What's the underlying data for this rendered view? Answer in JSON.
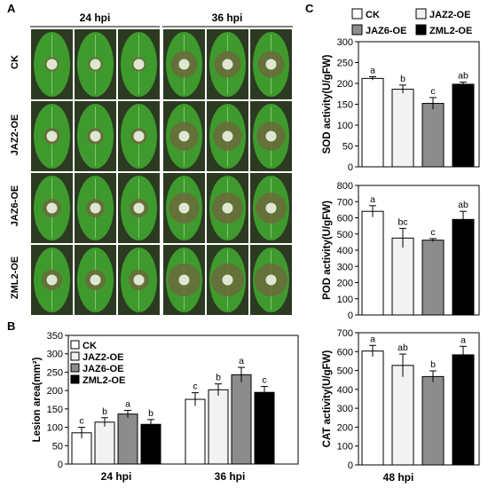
{
  "panel_letters": {
    "a": "A",
    "b": "B",
    "c": "C"
  },
  "photo_panel": {
    "columns": [
      "24 hpi",
      "36 hpi"
    ],
    "rows": [
      "CK",
      "JAZ2-OE",
      "JAZ6-OE",
      "ZML2-OE"
    ],
    "leaf_colors": {
      "leaf": "#3f9a2e",
      "lesion": "#6b6a3a",
      "center": "#dfe6d4",
      "background": "#2c3a22"
    }
  },
  "legend_entries": [
    "CK",
    "JAZ2-OE",
    "JAZ6-OE",
    "ZML2-OE"
  ],
  "series_colors": [
    "#ffffff",
    "#f2f2f2",
    "#8c8c8c",
    "#000000"
  ],
  "bottom_label": "48 hpi",
  "chart_data": [
    {
      "panel": "B",
      "type": "bar",
      "ylabel": "Lesion area(mm²)",
      "ylim": [
        0,
        350
      ],
      "yticks": [
        0,
        50,
        100,
        150,
        200,
        250,
        300,
        350
      ],
      "categories": [
        "24 hpi",
        "36 hpi"
      ],
      "legend": "top-left",
      "series": [
        {
          "name": "CK",
          "values": [
            85,
            176
          ],
          "errors": [
            15,
            18
          ],
          "letters": [
            "c",
            "c"
          ]
        },
        {
          "name": "JAZ2-OE",
          "values": [
            114,
            202
          ],
          "errors": [
            12,
            16
          ],
          "letters": [
            "b",
            "b"
          ]
        },
        {
          "name": "JAZ6-OE",
          "values": [
            136,
            243
          ],
          "errors": [
            10,
            20
          ],
          "letters": [
            "a",
            "a"
          ]
        },
        {
          "name": "ZML2-OE",
          "values": [
            108,
            195
          ],
          "errors": [
            13,
            16
          ],
          "letters": [
            "b",
            "c"
          ]
        }
      ]
    },
    {
      "panel": "C-top",
      "type": "bar",
      "ylabel": "SOD activity(U/gFW)",
      "ylim": [
        0,
        300
      ],
      "yticks": [
        0,
        50,
        100,
        150,
        200,
        250,
        300
      ],
      "categories": [
        "CK",
        "JAZ2-OE",
        "JAZ6-OE",
        "ZML2-OE"
      ],
      "values": [
        212,
        186,
        152,
        198
      ],
      "errors": [
        4,
        10,
        14,
        5
      ],
      "letters": [
        "a",
        "b",
        "c",
        "ab"
      ]
    },
    {
      "panel": "C-middle",
      "type": "bar",
      "ylabel": "POD activity(U/gFW)",
      "ylim": [
        0,
        800
      ],
      "yticks": [
        0,
        100,
        200,
        300,
        400,
        500,
        600,
        700,
        800
      ],
      "categories": [
        "CK",
        "JAZ2-OE",
        "JAZ6-OE",
        "ZML2-OE"
      ],
      "values": [
        640,
        475,
        462,
        590
      ],
      "errors": [
        35,
        60,
        10,
        50
      ],
      "letters": [
        "a",
        "bc",
        "c",
        "ab"
      ]
    },
    {
      "panel": "C-bottom",
      "type": "bar",
      "ylabel": "CAT activity(U/gFW)",
      "ylim": [
        0,
        700
      ],
      "yticks": [
        0,
        100,
        200,
        300,
        400,
        500,
        600,
        700
      ],
      "categories": [
        "CK",
        "JAZ2-OE",
        "JAZ6-OE",
        "ZML2-OE"
      ],
      "values": [
        603,
        527,
        468,
        583
      ],
      "errors": [
        30,
        60,
        30,
        45
      ],
      "letters": [
        "a",
        "ab",
        "b",
        "a"
      ]
    }
  ]
}
